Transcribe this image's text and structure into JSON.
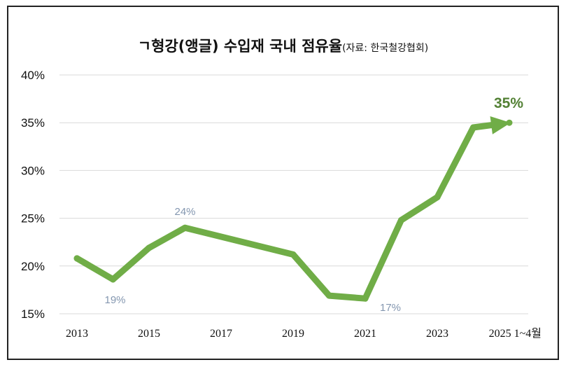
{
  "chart_data": {
    "type": "line",
    "title": "ㄱ형강(앵글) 수입재 국내 점유율",
    "source_note": "(자료: 한국철강협회)",
    "x": [
      "2013",
      "2014",
      "2015",
      "2016",
      "2017",
      "2018",
      "2019",
      "2020",
      "2021",
      "2022",
      "2023",
      "2024",
      "2025 1~4월"
    ],
    "x_tick_labels": [
      "2013",
      "2015",
      "2017",
      "2019",
      "2021",
      "2023",
      "2025 1~4월"
    ],
    "series": [
      {
        "values": [
          20.8,
          18.6,
          21.9,
          24.0,
          null,
          null,
          21.2,
          16.9,
          16.6,
          24.8,
          27.2,
          34.5,
          35.0
        ]
      }
    ],
    "y_tick_labels": [
      "15%",
      "20%",
      "25%",
      "30%",
      "35%",
      "40%"
    ],
    "ylim": [
      15,
      40
    ],
    "data_labels": [
      {
        "x": "2014",
        "text": "19%"
      },
      {
        "x": "2016",
        "text": "24%"
      },
      {
        "x": "2021",
        "text": "17%"
      }
    ],
    "end_label": "35%",
    "line_color": "#70ad47",
    "end_label_color": "#538135",
    "data_label_color": "#8497b0",
    "grid": true,
    "legend": "none"
  }
}
